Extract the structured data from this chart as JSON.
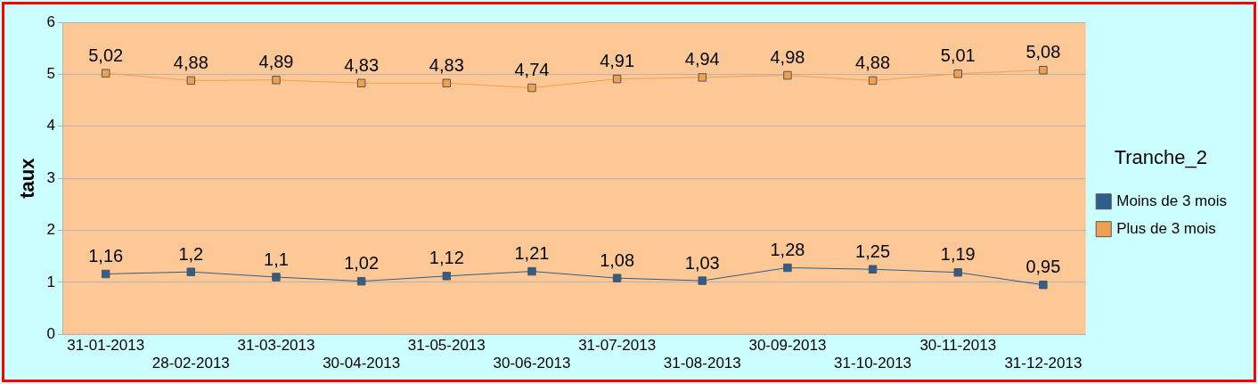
{
  "chart_data": {
    "type": "line",
    "ylabel": "taux",
    "legend_title": "Tranche_2",
    "categories": [
      "31-01-2013",
      "28-02-2013",
      "31-03-2013",
      "30-04-2013",
      "31-05-2013",
      "30-06-2013",
      "31-07-2013",
      "31-08-2013",
      "30-09-2013",
      "31-10-2013",
      "30-11-2013",
      "31-12-2013"
    ],
    "series": [
      {
        "name": "Moins de 3 mois",
        "color": "#2f5d8c",
        "values": [
          1.16,
          1.2,
          1.1,
          1.02,
          1.12,
          1.21,
          1.08,
          1.03,
          1.28,
          1.25,
          1.19,
          0.95
        ],
        "value_labels": [
          "1,16",
          "1,2",
          "1,1",
          "1,02",
          "1,12",
          "1,21",
          "1,08",
          "1,03",
          "1,28",
          "1,25",
          "1,19",
          "0,95"
        ]
      },
      {
        "name": "Plus de 3 mois",
        "color": "#f0a050",
        "values": [
          5.02,
          4.88,
          4.89,
          4.83,
          4.83,
          4.74,
          4.91,
          4.94,
          4.98,
          4.88,
          5.01,
          5.08
        ],
        "value_labels": [
          "5,02",
          "4,88",
          "4,89",
          "4,83",
          "4,83",
          "4,74",
          "4,91",
          "4,94",
          "4,98",
          "4,88",
          "5,01",
          "5,08"
        ]
      }
    ],
    "ylim": [
      0,
      6
    ],
    "yticks": [
      0,
      1,
      2,
      3,
      4,
      5,
      6
    ],
    "grid": "y",
    "legend": "right",
    "marker": "square",
    "line_style": "solid"
  }
}
